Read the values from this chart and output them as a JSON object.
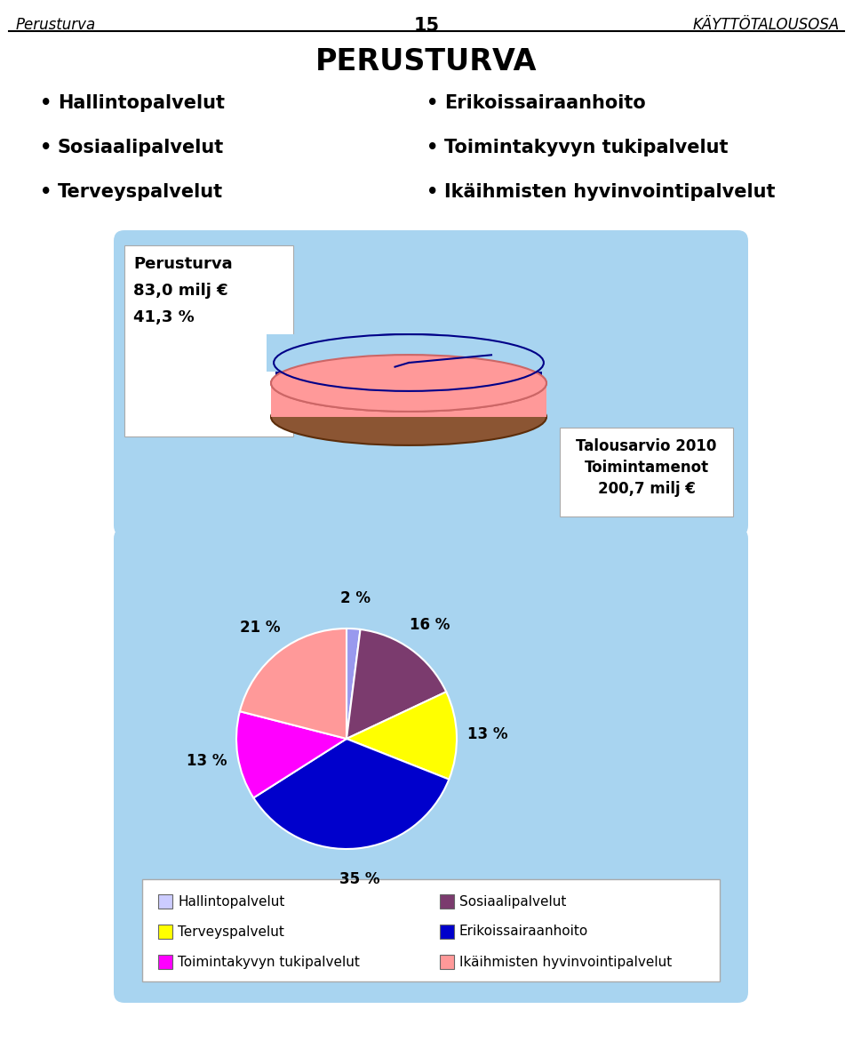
{
  "title": "PERUSTURVA",
  "header_left": "Perusturva",
  "header_center": "15",
  "header_right": "KÄYTTÖTALOUSOSA",
  "bullet_items_left": [
    "Hallintopalvelut",
    "Sosiaalipalvelut",
    "Terveyspalvelut"
  ],
  "bullet_items_right": [
    "Erikoissairaanhoito",
    "Toimintakyvyn tukipalvelut",
    "Ikäihmisten hyvinvointipalvelut"
  ],
  "box1_label1": "Perusturva",
  "box1_label2": "83,0 milj €",
  "box1_label3": "41,3 %",
  "box2_label1": "Talousarvio 2010",
  "box2_label2": "Toimintamenot",
  "box2_label3": "200,7 milj €",
  "pie_values": [
    2,
    16,
    13,
    35,
    13,
    21
  ],
  "pie_labels": [
    "2 %",
    "16 %",
    "13 %",
    "35 %",
    "13 %",
    "21 %"
  ],
  "pie_colors": [
    "#9999EE",
    "#7B3B6E",
    "#FFFF00",
    "#0000CC",
    "#FF00FF",
    "#FF9999"
  ],
  "pie_legend_labels": [
    "Hallintopalvelut",
    "Sosiaalipalvelut",
    "Terveyspalvelut",
    "Erikoissairaanhoito",
    "Toimintakyvyn tukipalvelut",
    "Ikäihmisten hyvinvointipalvelut"
  ],
  "pie_legend_colors": [
    "#CCCCFF",
    "#7B3B6E",
    "#FFFF00",
    "#0000CC",
    "#FF00FF",
    "#FF9999"
  ],
  "bg_color": "#FFFFFF",
  "panel_blue_top": "#A8D4F0",
  "panel_blue_bot": "#A8D4F0"
}
